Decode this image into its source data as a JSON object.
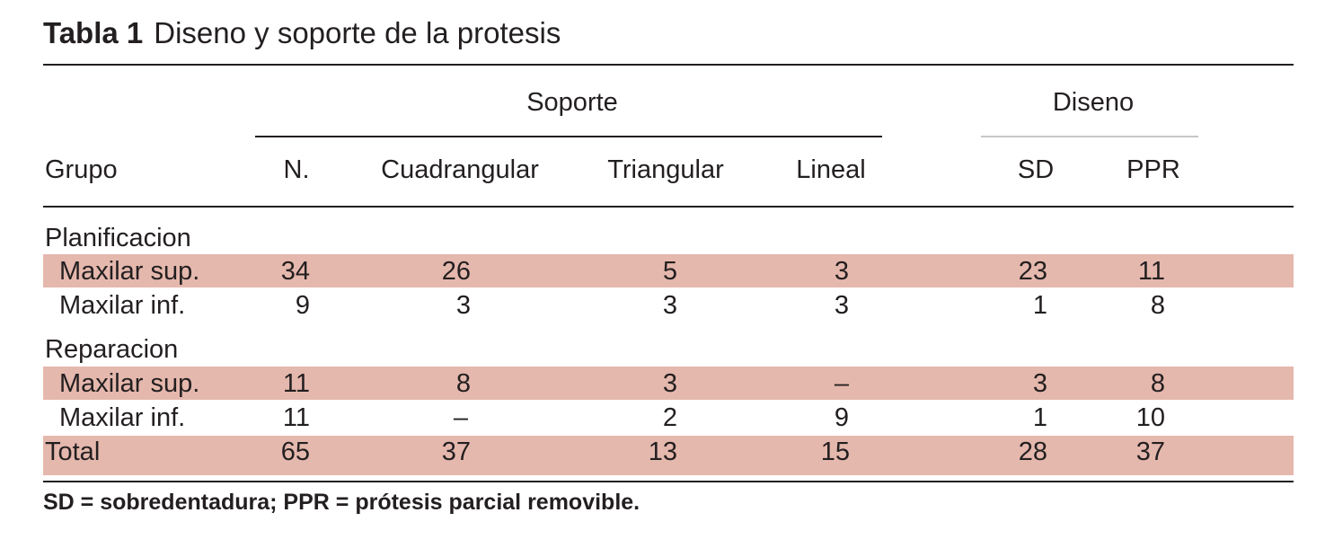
{
  "table": {
    "number": "Tabla 1",
    "title": "Diseno y soporte de la protesis",
    "group_headers": {
      "soporte": "Soporte",
      "diseno": "Diseno"
    },
    "columns": [
      "Grupo",
      "N.",
      "Cuadrangular",
      "Triangular",
      "Lineal",
      "SD",
      "PPR"
    ],
    "groups": [
      {
        "label": "Planificacion",
        "rows": [
          {
            "label": "Maxilar sup.",
            "values": [
              "34",
              "26",
              "5",
              "3",
              "23",
              "11"
            ],
            "shaded": true
          },
          {
            "label": "Maxilar inf.",
            "values": [
              "9",
              "3",
              "3",
              "3",
              "1",
              "8"
            ],
            "shaded": false
          }
        ]
      },
      {
        "label": "Reparacion",
        "rows": [
          {
            "label": "Maxilar sup.",
            "values": [
              "11",
              "8",
              "3",
              "–",
              "3",
              "8"
            ],
            "shaded": true
          },
          {
            "label": "Maxilar inf.",
            "values": [
              "11",
              "–",
              "2",
              "9",
              "1",
              "10"
            ],
            "shaded": false
          }
        ]
      }
    ],
    "total": {
      "label": "Total",
      "values": [
        "65",
        "37",
        "13",
        "15",
        "28",
        "37"
      ]
    },
    "footnote": "SD = sobredentadura; PPR = prótesis parcial removible.",
    "band_color": "#e5b8ad"
  }
}
